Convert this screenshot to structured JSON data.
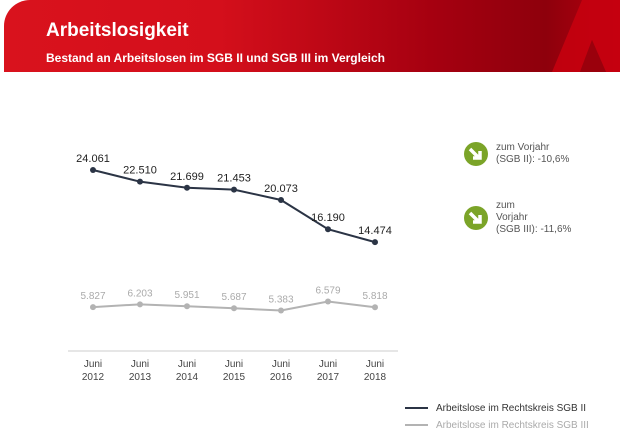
{
  "header": {
    "title": "Arbeitslosigkeit",
    "subtitle": "Bestand an Arbeitslosen im SGB II und SGB III im Vergleich"
  },
  "badges": [
    {
      "icon": "arrow-down-right-icon",
      "lines": [
        "zum Vorjahr",
        "(SGB II):  -10,6%"
      ]
    },
    {
      "icon": "arrow-down-right-icon",
      "lines": [
        "zum",
        "Vorjahr",
        "(SGB III):  -11,6%"
      ]
    }
  ],
  "colors": {
    "brand": "#d9121d",
    "sgb2": "#2b3445",
    "sgb3": "#b3b3b3",
    "badge": "#7ba428"
  },
  "chart_data": {
    "type": "line",
    "categories": [
      [
        "Juni",
        "2012"
      ],
      [
        "Juni",
        "2013"
      ],
      [
        "Juni",
        "2014"
      ],
      [
        "Juni",
        "2015"
      ],
      [
        "Juni",
        "2016"
      ],
      [
        "Juni",
        "2017"
      ],
      [
        "Juni",
        "2018"
      ]
    ],
    "series": [
      {
        "name": "Arbeitslose im Rechtskreis SGB II",
        "values": [
          24061,
          22510,
          21699,
          21453,
          20073,
          16190,
          14474
        ],
        "labels": [
          "24.061",
          "22.510",
          "21.699",
          "21.453",
          "20.073",
          "16.190",
          "14.474"
        ],
        "color": "#2b3445"
      },
      {
        "name": "Arbeitslose im Rechtskreis SGB III",
        "values": [
          5827,
          6203,
          5951,
          5687,
          5383,
          6579,
          5818
        ],
        "labels": [
          "5.827",
          "6.203",
          "5.951",
          "5.687",
          "5.383",
          "6.579",
          "5.818"
        ],
        "color": "#b3b3b3"
      }
    ],
    "ylim": [
      0,
      24061
    ],
    "grid": false,
    "legend": "bottom-right"
  }
}
